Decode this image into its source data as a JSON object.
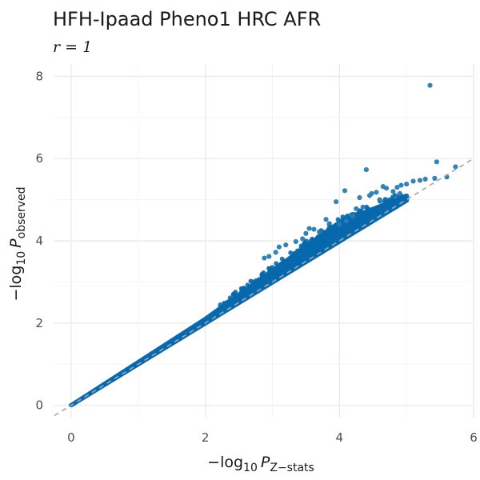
{
  "chart_data": {
    "type": "scatter",
    "title": "HFH-Ipaad Pheno1 HRC AFR",
    "subtitle": "r = 1",
    "xlabel": {
      "prefix": "−log",
      "base": "10",
      "var": "P",
      "sub": "Z−stats"
    },
    "ylabel": {
      "prefix": "−log",
      "base": "10",
      "var": "P",
      "sub": "observed"
    },
    "xlim": [
      -0.25,
      6.0
    ],
    "ylim": [
      -0.3,
      8.3
    ],
    "x_ticks": [
      0,
      2,
      4,
      6
    ],
    "y_ticks": [
      0,
      2,
      4,
      6,
      8
    ],
    "grid": true,
    "reference_line": {
      "slope": 1,
      "intercept": 0,
      "style": "dashed"
    },
    "point_color": "#0868ac",
    "ref_line_color": "#a6a6a6",
    "band": {
      "x_end": 5.0,
      "upper_at_x2": 2.1,
      "upper_at_x4": 4.45,
      "upper_at_x5": 5.1
    },
    "outliers": [
      [
        5.35,
        7.78
      ],
      [
        5.45,
        5.92
      ],
      [
        5.73,
        5.8
      ],
      [
        4.4,
        5.73
      ],
      [
        5.2,
        5.47
      ],
      [
        5.28,
        5.5
      ],
      [
        5.42,
        5.52
      ],
      [
        5.6,
        5.55
      ],
      [
        5.1,
        5.45
      ],
      [
        4.65,
        5.32
      ],
      [
        4.7,
        5.28
      ],
      [
        4.92,
        5.35
      ],
      [
        5.0,
        5.38
      ],
      [
        4.86,
        5.3
      ],
      [
        4.08,
        5.22
      ],
      [
        4.55,
        5.18
      ],
      [
        4.48,
        5.15
      ],
      [
        4.45,
        5.1
      ],
      [
        4.3,
        5.05
      ],
      [
        4.6,
        5.0
      ],
      [
        4.8,
        5.2
      ],
      [
        4.9,
        5.15
      ],
      [
        3.95,
        4.95
      ],
      [
        4.25,
        4.78
      ],
      [
        4.35,
        4.82
      ],
      [
        4.2,
        4.6
      ],
      [
        3.8,
        4.52
      ],
      [
        3.85,
        4.42
      ],
      [
        4.1,
        4.48
      ],
      [
        4.0,
        4.4
      ],
      [
        3.55,
        4.3
      ],
      [
        3.62,
        4.28
      ],
      [
        3.5,
        4.18
      ],
      [
        3.7,
        4.22
      ],
      [
        3.2,
        3.9
      ],
      [
        3.35,
        3.98
      ],
      [
        3.45,
        4.05
      ],
      [
        3.1,
        3.85
      ],
      [
        2.95,
        3.62
      ],
      [
        3.05,
        3.72
      ],
      [
        2.88,
        3.58
      ]
    ]
  }
}
